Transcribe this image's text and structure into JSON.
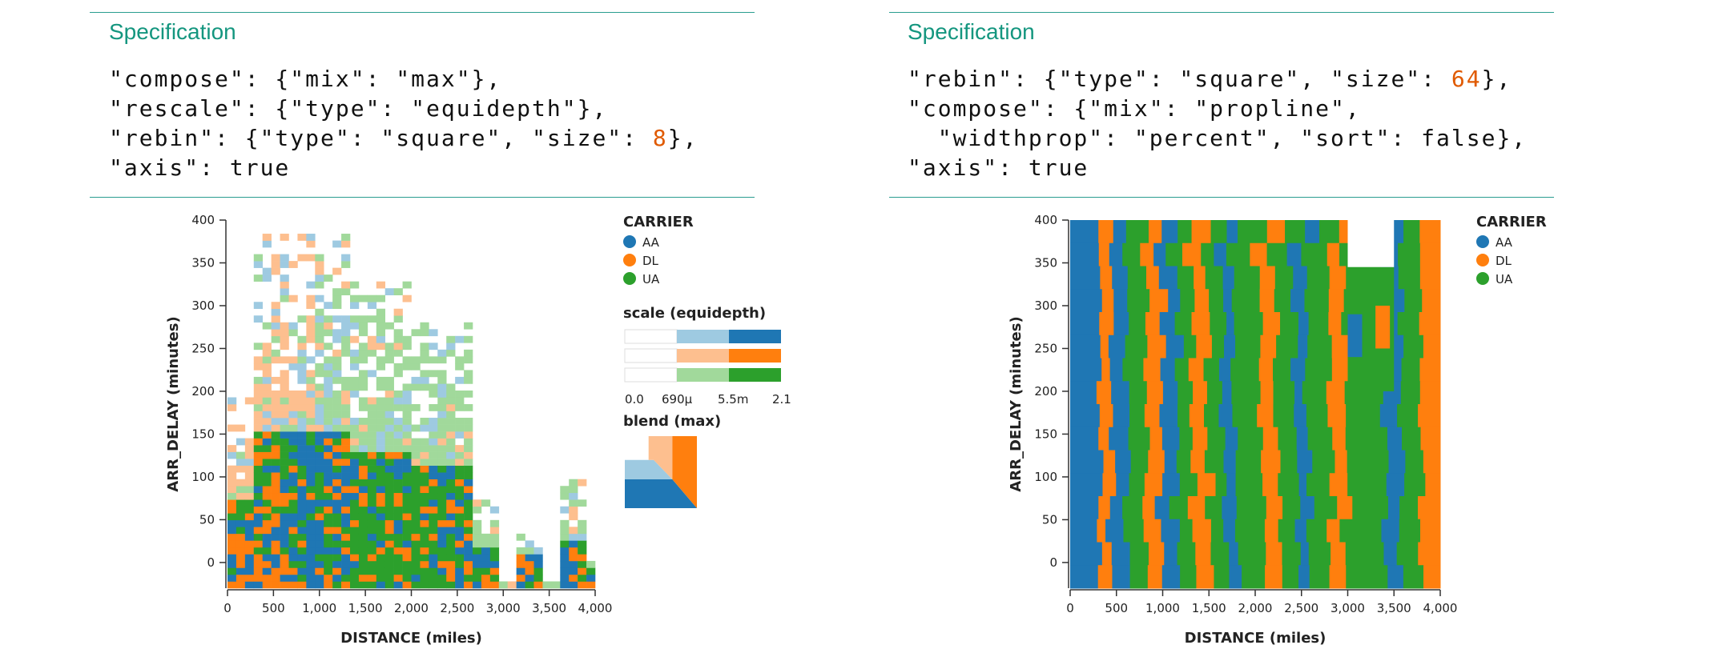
{
  "left": {
    "spec_title": "Specification",
    "spec_lines": [
      {
        "t": "\"compose\": {\"mix\": \"max\"},"
      },
      {
        "t": "\"rescale\": {\"type\": \"equidepth\"},"
      },
      {
        "t": "\"rebin\": {\"type\": \"square\", \"size\": ",
        "num": "8",
        "tail": "},"
      },
      {
        "t": "\"axis\": true"
      }
    ]
  },
  "right": {
    "spec_title": "Specification",
    "spec_lines": [
      {
        "t": "\"rebin\": {\"type\": \"square\", \"size\": ",
        "num": "64",
        "tail": "},"
      },
      {
        "t": "\"compose\": {\"mix\": \"propline\","
      },
      {
        "t": "  \"widthprop\": \"percent\", \"sort\": false},"
      },
      {
        "t": "\"axis\": true"
      }
    ]
  },
  "colors": {
    "AA": "#1f77b4",
    "DL": "#ff7f0e",
    "UA": "#2ca02c",
    "AA_light": "#9ecae1",
    "DL_light": "#fdbf8f",
    "UA_light": "#a1d99b",
    "rule": "#2a9d8f"
  },
  "chart_data": [
    {
      "type": "heatmap",
      "xlabel": "DISTANCE (miles)",
      "ylabel": "ARR_DELAY (minutes)",
      "xlim": [
        0,
        4000
      ],
      "ylim": [
        -30,
        400
      ],
      "x_ticks": [
        "0",
        "500",
        "1,000",
        "1,500",
        "2,000",
        "2,500",
        "3,000",
        "3,500",
        "4,000"
      ],
      "y_ticks": [
        "0",
        "50",
        "100",
        "150",
        "200",
        "250",
        "300",
        "350",
        "400"
      ],
      "legend_title": "CARRIER",
      "legend": [
        "AA",
        "DL",
        "UA"
      ],
      "scale_title": "scale (equidepth)",
      "scale_ticks": [
        "0.0",
        "690μ",
        "5.5m",
        "2.1"
      ],
      "blend_title": "blend (max)",
      "bin_size": 8
    },
    {
      "type": "heatmap",
      "xlabel": "DISTANCE (miles)",
      "ylabel": "ARR_DELAY (minutes)",
      "xlim": [
        0,
        4000
      ],
      "ylim": [
        -30,
        400
      ],
      "x_ticks": [
        "0",
        "500",
        "1,000",
        "1,500",
        "2,000",
        "2,500",
        "3,000",
        "3,500",
        "4,000"
      ],
      "y_ticks": [
        "0",
        "50",
        "100",
        "150",
        "200",
        "250",
        "300",
        "350",
        "400"
      ],
      "legend_title": "CARRIER",
      "legend": [
        "AA",
        "DL",
        "UA"
      ],
      "bin_size": 64
    }
  ]
}
